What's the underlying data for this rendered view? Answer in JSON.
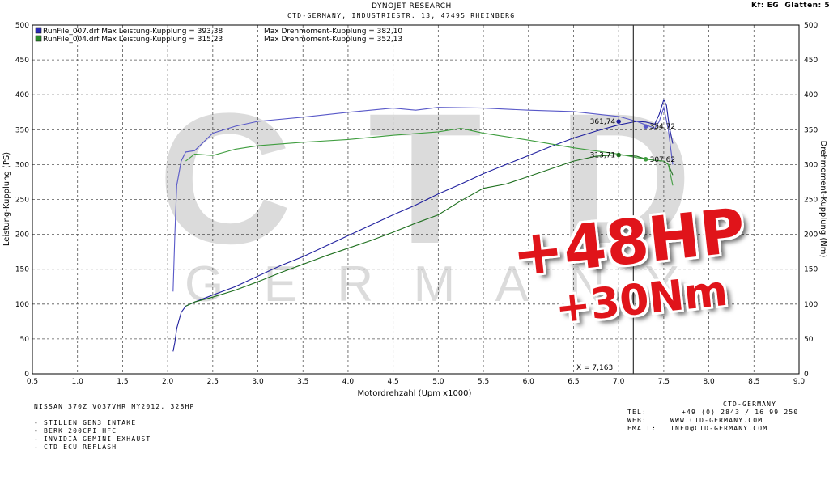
{
  "header": {
    "title": "DYNOJET RESEARCH",
    "subtitle": "CTD-GERMANY, INDUSTRIESTR. 13, 47495 RHEINBERG",
    "settings": "Kf: EG  Glätten: 5"
  },
  "watermark": {
    "big": "CTD",
    "small": "GERMANY"
  },
  "gains": {
    "hp": "+48HP",
    "nm": "+30Nm"
  },
  "cursor_label": "X = 7,163",
  "vehicle": {
    "title": "NISSAN 370Z VQ37VHR MY2012, 328HP",
    "mods": [
      "- STILLEN GEN3 INTAKE",
      "- BERK 200CPI HFC",
      "- INVIDIA GEMINI EXHAUST",
      "- CTD ECU REFLASH"
    ]
  },
  "contact": {
    "company": "CTD-GERMANY",
    "tel_label": "TEL:",
    "tel": "+49 (0) 2843 / 16 99 250",
    "web_label": "WEB:",
    "web": "WWW.CTD-GERMANY.COM",
    "email_label": "EMAIL:",
    "email": "INFO@CTD-GERMANY.COM"
  },
  "chart_data": {
    "type": "line",
    "xlabel": "Motordrehzahl (Upm x1000)",
    "ylabel": "Leistung-Kupplung (PS)",
    "y2label": "Drehmoment-Kupplung (Nm)",
    "xlim": [
      0.5,
      9.0
    ],
    "ylim": [
      0,
      500
    ],
    "y2lim": [
      0,
      500
    ],
    "xticks": [
      "0,5",
      "1,0",
      "1,5",
      "2,0",
      "2,5",
      "3,0",
      "3,5",
      "4,0",
      "4,5",
      "5,0",
      "5,5",
      "6,0",
      "6,5",
      "7,0",
      "7,5",
      "8,0",
      "8,5",
      "9,0"
    ],
    "yticks": [
      "0",
      "50",
      "100",
      "150",
      "200",
      "250",
      "300",
      "350",
      "400",
      "450",
      "500"
    ],
    "grid": true,
    "legend": [
      {
        "name": "RunFile_007.drf Max Leistung-Kupplung = 393,38",
        "extra": "Max Drehmoment-Kupplung = 382,10",
        "color": "#2a2ab4"
      },
      {
        "name": "RunFile_004.drf Max Leistung-Kupplung = 315,23",
        "extra": "Max Drehmoment-Kupplung = 352,13",
        "color": "#2b8a2b"
      }
    ],
    "cursor_x": 7.163,
    "series": [
      {
        "run": "007",
        "quantity": "power",
        "color": "#1f1f9e",
        "points": [
          [
            2.06,
            32
          ],
          [
            2.08,
            45
          ],
          [
            2.1,
            65
          ],
          [
            2.15,
            88
          ],
          [
            2.2,
            97
          ],
          [
            2.3,
            103
          ],
          [
            2.5,
            113
          ],
          [
            2.75,
            125
          ],
          [
            3.0,
            140
          ],
          [
            3.25,
            155
          ],
          [
            3.5,
            168
          ],
          [
            3.75,
            183
          ],
          [
            4.0,
            198
          ],
          [
            4.25,
            213
          ],
          [
            4.5,
            228
          ],
          [
            4.75,
            242
          ],
          [
            5.0,
            258
          ],
          [
            5.25,
            272
          ],
          [
            5.5,
            287
          ],
          [
            5.75,
            300
          ],
          [
            6.0,
            313
          ],
          [
            6.25,
            326
          ],
          [
            6.5,
            338
          ],
          [
            6.75,
            348
          ],
          [
            7.0,
            357
          ],
          [
            7.2,
            362
          ],
          [
            7.3,
            361
          ],
          [
            7.4,
            358
          ],
          [
            7.45,
            372
          ],
          [
            7.5,
            393
          ],
          [
            7.53,
            385
          ],
          [
            7.56,
            355
          ],
          [
            7.6,
            330
          ]
        ]
      },
      {
        "run": "007",
        "quantity": "torque",
        "color": "#5858c8",
        "points": [
          [
            2.06,
            118
          ],
          [
            2.08,
            200
          ],
          [
            2.1,
            270
          ],
          [
            2.15,
            305
          ],
          [
            2.2,
            318
          ],
          [
            2.3,
            320
          ],
          [
            2.5,
            345
          ],
          [
            2.75,
            355
          ],
          [
            3.0,
            362
          ],
          [
            3.5,
            368
          ],
          [
            4.0,
            375
          ],
          [
            4.25,
            378
          ],
          [
            4.5,
            381
          ],
          [
            4.75,
            378
          ],
          [
            5.0,
            382
          ],
          [
            5.5,
            381
          ],
          [
            6.0,
            378
          ],
          [
            6.5,
            376
          ],
          [
            7.0,
            369
          ],
          [
            7.2,
            362
          ],
          [
            7.3,
            357
          ],
          [
            7.4,
            352
          ],
          [
            7.45,
            362
          ],
          [
            7.5,
            382
          ],
          [
            7.55,
            350
          ],
          [
            7.6,
            300
          ]
        ]
      },
      {
        "run": "004",
        "quantity": "power",
        "color": "#1e6f1e",
        "points": [
          [
            2.2,
            97
          ],
          [
            2.3,
            103
          ],
          [
            2.5,
            110
          ],
          [
            2.75,
            120
          ],
          [
            3.0,
            132
          ],
          [
            3.25,
            145
          ],
          [
            3.5,
            157
          ],
          [
            3.75,
            169
          ],
          [
            4.0,
            180
          ],
          [
            4.25,
            191
          ],
          [
            4.5,
            203
          ],
          [
            4.75,
            216
          ],
          [
            5.0,
            228
          ],
          [
            5.25,
            248
          ],
          [
            5.5,
            266
          ],
          [
            5.75,
            272
          ],
          [
            6.0,
            283
          ],
          [
            6.25,
            294
          ],
          [
            6.5,
            305
          ],
          [
            6.75,
            312
          ],
          [
            7.0,
            314
          ],
          [
            7.2,
            312
          ],
          [
            7.3,
            308
          ],
          [
            7.4,
            306
          ],
          [
            7.5,
            305
          ],
          [
            7.55,
            300
          ],
          [
            7.6,
            285
          ]
        ]
      },
      {
        "run": "004",
        "quantity": "torque",
        "color": "#3f9d3f",
        "points": [
          [
            2.2,
            305
          ],
          [
            2.3,
            315
          ],
          [
            2.5,
            313
          ],
          [
            2.75,
            322
          ],
          [
            3.0,
            327
          ],
          [
            3.5,
            332
          ],
          [
            4.0,
            336
          ],
          [
            4.5,
            342
          ],
          [
            5.0,
            347
          ],
          [
            5.25,
            352
          ],
          [
            5.5,
            345
          ],
          [
            6.0,
            335
          ],
          [
            6.5,
            324
          ],
          [
            7.0,
            315
          ],
          [
            7.2,
            310
          ],
          [
            7.3,
            308
          ],
          [
            7.4,
            306
          ],
          [
            7.5,
            305
          ],
          [
            7.55,
            300
          ],
          [
            7.6,
            270
          ]
        ]
      }
    ],
    "markers": [
      {
        "x": 7.0,
        "y": 361.74,
        "label": "361,74",
        "color": "#1f1f9e"
      },
      {
        "x": 7.3,
        "y": 354.72,
        "label": "354,72",
        "color": "#5858c8"
      },
      {
        "x": 7.0,
        "y": 313.71,
        "label": "313,71",
        "color": "#1e6f1e"
      },
      {
        "x": 7.3,
        "y": 307.62,
        "label": "307,62",
        "color": "#3f9d3f"
      }
    ]
  }
}
